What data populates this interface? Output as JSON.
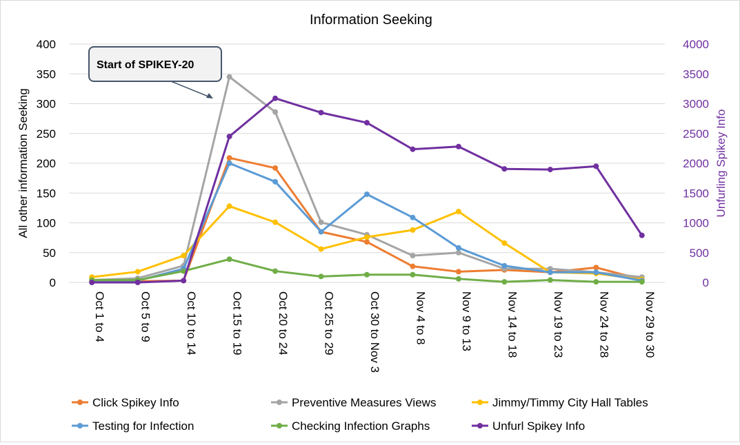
{
  "chart_data": {
    "type": "line",
    "title": "Information Seeking",
    "ylabel": "All other information Seeking",
    "y2label": "Unfurling Spikey Info",
    "ylim": [
      0,
      400
    ],
    "y2lim": [
      0,
      4000
    ],
    "yticks": [
      0,
      50,
      100,
      150,
      200,
      250,
      300,
      350,
      400
    ],
    "y2ticks": [
      0,
      500,
      1000,
      1500,
      2000,
      2500,
      3000,
      3500,
      4000
    ],
    "grid": true,
    "legend_placement": "bottom",
    "categories": [
      "Oct 1 to 4",
      "Oct 5 to 9",
      "Oct 10 to 14",
      "Oct 15 to 19",
      "Oct 20 to 24",
      "Oct 25 to 29",
      "Oct 30 to Nov 3",
      "Nov 4 to 8",
      "Nov 9 to 13",
      "Nov 14 to 18",
      "Nov 19 to 23",
      "Nov 24 to 28",
      "Nov 29 to 30"
    ],
    "series": [
      {
        "name": "Click Spikey Info",
        "axis": "left",
        "color": "#ED7D31",
        "values": [
          1,
          2,
          3,
          209,
          192,
          85,
          68,
          27,
          18,
          21,
          17,
          25,
          5
        ]
      },
      {
        "name": "Preventive Measures Views",
        "axis": "left",
        "color": "#A5A5A5",
        "values": [
          4,
          7,
          28,
          345,
          286,
          101,
          80,
          45,
          50,
          23,
          23,
          17,
          9
        ]
      },
      {
        "name": "Jimmy/Timmy City Hall Tables",
        "axis": "left",
        "color": "#FFC000",
        "values": [
          9,
          18,
          45,
          128,
          101,
          56,
          76,
          88,
          119,
          66,
          17,
          15,
          5
        ]
      },
      {
        "name": "Testing for Infection",
        "axis": "left",
        "color": "#5B9BD5",
        "values": [
          1,
          3,
          23,
          200,
          169,
          85,
          148,
          109,
          58,
          28,
          17,
          17,
          3
        ]
      },
      {
        "name": "Checking Infection Graphs",
        "axis": "left",
        "color": "#70AD47",
        "values": [
          4,
          4,
          19,
          39,
          19,
          10,
          13,
          13,
          6,
          1,
          4,
          1,
          1
        ]
      },
      {
        "name": "Unfurl Spikey Info",
        "axis": "right",
        "color": "#7030A0",
        "values": [
          0,
          0,
          30,
          2450,
          3090,
          2850,
          2680,
          2235,
          2280,
          1905,
          1895,
          1950,
          790
        ]
      }
    ],
    "annotations": [
      {
        "text": "Start of SPIKEY-20",
        "points_to": "Oct 15 to 19"
      }
    ]
  }
}
